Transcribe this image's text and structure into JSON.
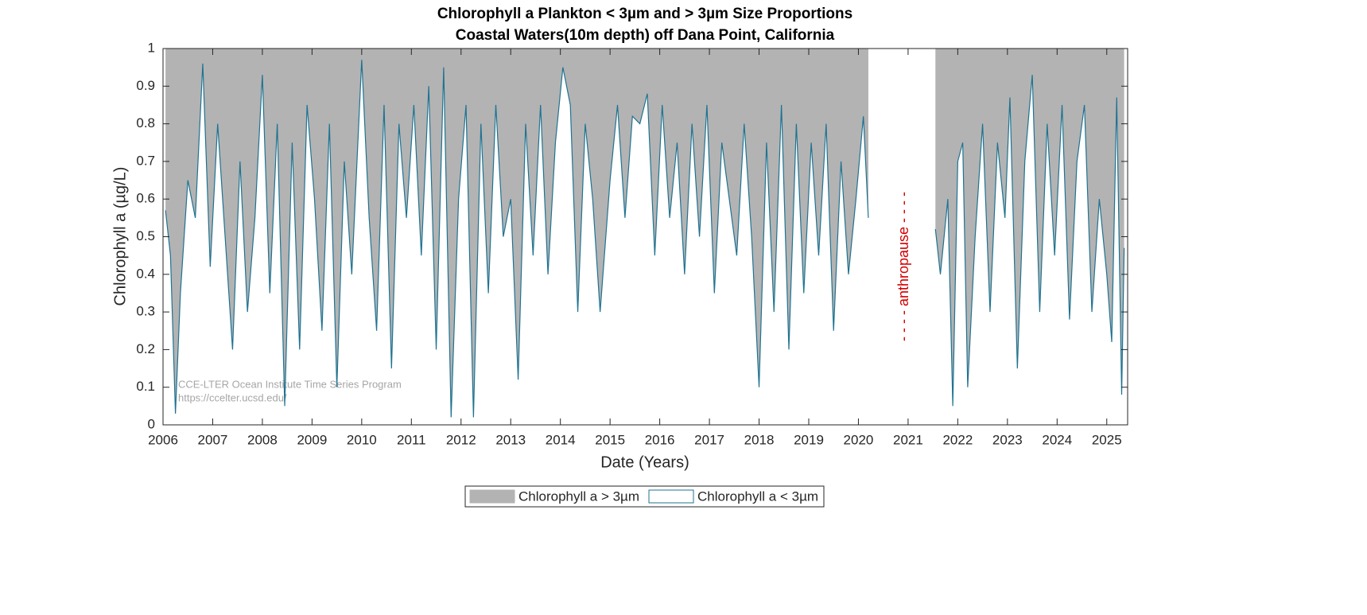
{
  "chart_data": {
    "type": "stacked-area",
    "title": "Chlorophyll a Plankton < 3µm and > 3µm Size Proportions",
    "subtitle": "Coastal Waters(10m depth) off Dana Point, California",
    "x_label": "Date (Years)",
    "y_label": "Chlorophyll a (µg/L)",
    "annotations": [
      "- - - -  anthropause  - - - -",
      "CCE-LTER Ocean Institute Time Series Program",
      "https://ccelter.ucsd.edu/"
    ],
    "x": [
      2006.05,
      2006.15,
      2006.25,
      2006.35,
      2006.5,
      2006.65,
      2006.8,
      2006.95,
      2007.1,
      2007.25,
      2007.4,
      2007.55,
      2007.7,
      2007.85,
      2008.0,
      2008.15,
      2008.3,
      2008.45,
      2008.6,
      2008.75,
      2008.9,
      2009.05,
      2009.2,
      2009.35,
      2009.5,
      2009.65,
      2009.8,
      2010.0,
      2010.15,
      2010.3,
      2010.45,
      2010.6,
      2010.75,
      2010.9,
      2011.05,
      2011.2,
      2011.35,
      2011.5,
      2011.65,
      2011.8,
      2011.95,
      2012.1,
      2012.25,
      2012.4,
      2012.55,
      2012.7,
      2012.85,
      2013.0,
      2013.15,
      2013.3,
      2013.45,
      2013.6,
      2013.75,
      2013.9,
      2014.05,
      2014.2,
      2014.35,
      2014.5,
      2014.65,
      2014.8,
      2015.0,
      2015.15,
      2015.3,
      2015.45,
      2015.6,
      2015.75,
      2015.9,
      2016.05,
      2016.2,
      2016.35,
      2016.5,
      2016.65,
      2016.8,
      2016.95,
      2017.1,
      2017.25,
      2017.4,
      2017.55,
      2017.7,
      2017.85,
      2018.0,
      2018.15,
      2018.3,
      2018.45,
      2018.6,
      2018.75,
      2018.9,
      2019.05,
      2019.2,
      2019.35,
      2019.5,
      2019.65,
      2019.8,
      2019.95,
      2020.1,
      2020.2,
      2020.6,
      2021.55,
      2021.65,
      2021.8,
      2021.9,
      2022.0,
      2022.1,
      2022.2,
      2022.35,
      2022.5,
      2022.65,
      2022.8,
      2022.95,
      2023.05,
      2023.2,
      2023.35,
      2023.5,
      2023.65,
      2023.8,
      2023.95,
      2024.1,
      2024.25,
      2024.4,
      2024.55,
      2024.7,
      2024.85,
      2025.0,
      2025.1,
      2025.2,
      2025.3,
      2025.35
    ],
    "series": [
      {
        "name": "Chlorophyll a > 3µm",
        "color": "#b3b3b3",
        "values": [
          0.43,
          0.55,
          0.97,
          0.65,
          0.35,
          0.45,
          0.04,
          0.58,
          0.2,
          0.5,
          0.8,
          0.3,
          0.7,
          0.45,
          0.07,
          0.65,
          0.2,
          0.95,
          0.25,
          0.8,
          0.15,
          0.4,
          0.75,
          0.2,
          0.9,
          0.3,
          0.6,
          0.03,
          0.45,
          0.75,
          0.15,
          0.85,
          0.2,
          0.45,
          0.15,
          0.55,
          0.1,
          0.8,
          0.05,
          0.98,
          0.4,
          0.15,
          0.98,
          0.2,
          0.65,
          0.15,
          0.5,
          0.4,
          0.88,
          0.2,
          0.55,
          0.15,
          0.6,
          0.25,
          0.05,
          0.15,
          0.7,
          0.2,
          0.4,
          0.7,
          0.35,
          0.15,
          0.45,
          0.18,
          0.2,
          0.12,
          0.55,
          0.15,
          0.45,
          0.25,
          0.6,
          0.2,
          0.5,
          0.15,
          0.65,
          0.25,
          0.4,
          0.55,
          0.2,
          0.5,
          0.9,
          0.25,
          0.7,
          0.15,
          0.8,
          0.2,
          0.65,
          0.25,
          0.55,
          0.2,
          0.75,
          0.3,
          0.6,
          0.4,
          0.18,
          0.45,
          null,
          0.48,
          0.6,
          0.4,
          0.95,
          0.3,
          0.25,
          0.9,
          0.5,
          0.2,
          0.7,
          0.25,
          0.45,
          0.13,
          0.85,
          0.3,
          0.07,
          0.7,
          0.2,
          0.55,
          0.15,
          0.72,
          0.3,
          0.15,
          0.7,
          0.4,
          0.6,
          0.78,
          0.13,
          0.92,
          0.53
        ]
      },
      {
        "name": "Chlorophyll a < 3µm",
        "color": "#1f7391",
        "values": [
          0.57,
          0.45,
          0.03,
          0.35,
          0.65,
          0.55,
          0.96,
          0.42,
          0.8,
          0.5,
          0.2,
          0.7,
          0.3,
          0.55,
          0.93,
          0.35,
          0.8,
          0.05,
          0.75,
          0.2,
          0.85,
          0.6,
          0.25,
          0.8,
          0.1,
          0.7,
          0.4,
          0.97,
          0.55,
          0.25,
          0.85,
          0.15,
          0.8,
          0.55,
          0.85,
          0.45,
          0.9,
          0.2,
          0.95,
          0.02,
          0.6,
          0.85,
          0.02,
          0.8,
          0.35,
          0.85,
          0.5,
          0.6,
          0.12,
          0.8,
          0.45,
          0.85,
          0.4,
          0.75,
          0.95,
          0.85,
          0.3,
          0.8,
          0.6,
          0.3,
          0.65,
          0.85,
          0.55,
          0.82,
          0.8,
          0.88,
          0.45,
          0.85,
          0.55,
          0.75,
          0.4,
          0.8,
          0.5,
          0.85,
          0.35,
          0.75,
          0.6,
          0.45,
          0.8,
          0.5,
          0.1,
          0.75,
          0.3,
          0.85,
          0.2,
          0.8,
          0.35,
          0.75,
          0.45,
          0.8,
          0.25,
          0.7,
          0.4,
          0.6,
          0.82,
          0.55,
          null,
          0.52,
          0.4,
          0.6,
          0.05,
          0.7,
          0.75,
          0.1,
          0.5,
          0.8,
          0.3,
          0.75,
          0.55,
          0.87,
          0.15,
          0.7,
          0.93,
          0.3,
          0.8,
          0.45,
          0.85,
          0.28,
          0.7,
          0.85,
          0.3,
          0.6,
          0.4,
          0.22,
          0.87,
          0.08,
          0.47
        ]
      }
    ],
    "xlim": [
      2006,
      2025.42
    ],
    "xticks": [
      2006,
      2007,
      2008,
      2009,
      2010,
      2011,
      2012,
      2013,
      2014,
      2015,
      2016,
      2017,
      2018,
      2019,
      2020,
      2021,
      2022,
      2023,
      2024,
      2025
    ],
    "ylim": [
      0,
      1
    ],
    "yticks": [
      0,
      0.1,
      0.2,
      0.3,
      0.4,
      0.5,
      0.6,
      0.7,
      0.8,
      0.9,
      1
    ],
    "legend": "bottom"
  }
}
